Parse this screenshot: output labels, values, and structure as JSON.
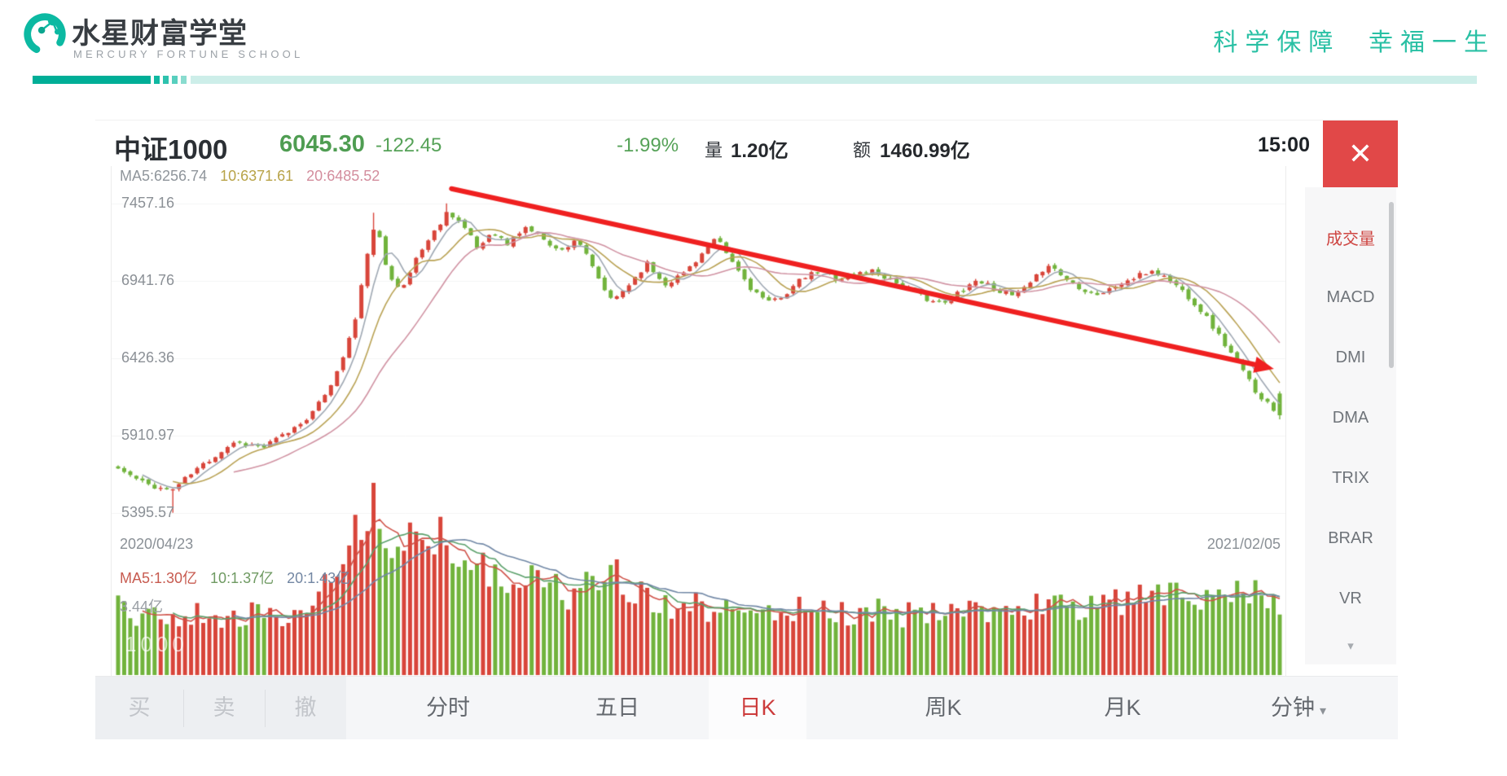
{
  "brand": {
    "logo_title": "水星财富学堂",
    "logo_subtitle": "MERCURY FORTUNE SCHOOL",
    "slogan": "科学保障  幸福一生",
    "colors": {
      "teal": "#0cb9a2",
      "bar_dark": "#00ae97",
      "bar_light": "#cdeee9",
      "bar_segments": [
        "#0fb8a1",
        "#2ec2ae",
        "#58cfbe",
        "#8adccf"
      ]
    }
  },
  "quote_header": {
    "name": "中证1000",
    "price": "6045.30",
    "change": "-122.45",
    "change_pct": "-1.99%",
    "volume_label": "量",
    "volume": "1.20亿",
    "turnover_label": "额",
    "turnover": "1460.99亿",
    "time": "15:00",
    "close_icon": "✕"
  },
  "price_pane": {
    "ma_labels": [
      {
        "text": "MA5:6256.74",
        "color": "#8f959b"
      },
      {
        "text": "10:6371.61",
        "color": "#b8a348"
      },
      {
        "text": "20:6485.52",
        "color": "#d38d9d"
      }
    ],
    "y_axis": [
      "7457.16",
      "6941.76",
      "6426.36",
      "5910.97",
      "5395.57"
    ],
    "date_start": "2020/04/23",
    "date_end": "2021/02/05"
  },
  "volume_pane": {
    "ma_labels": [
      {
        "text": "MA5:1.30亿",
        "color": "#c75b50"
      },
      {
        "text": "10:1.37亿",
        "color": "#6f9a62"
      },
      {
        "text": "20:1.43亿",
        "color": "#7387a3"
      }
    ],
    "max_label": "3.44亿",
    "watermark": "1000"
  },
  "sidebar": {
    "items": [
      {
        "label": "成交量",
        "key": "volume",
        "active": true
      },
      {
        "label": "MACD",
        "key": "macd",
        "active": false
      },
      {
        "label": "DMI",
        "key": "dmi",
        "active": false
      },
      {
        "label": "DMA",
        "key": "dma",
        "active": false
      },
      {
        "label": "TRIX",
        "key": "trix",
        "active": false
      },
      {
        "label": "BRAR",
        "key": "brar",
        "active": false
      },
      {
        "label": "VR",
        "key": "vr",
        "active": false
      }
    ],
    "more_icon": "▾"
  },
  "tabbar": {
    "tabs": [
      {
        "label": "买",
        "key": "buy",
        "muted": true
      },
      {
        "label": "卖",
        "key": "sell",
        "muted": true
      },
      {
        "label": "撤",
        "key": "cancel",
        "muted": true
      },
      {
        "label": "分时",
        "key": "intraday"
      },
      {
        "label": "五日",
        "key": "five-day"
      },
      {
        "label": "日K",
        "key": "daily-k",
        "active": true
      },
      {
        "label": "周K",
        "key": "weekly-k"
      },
      {
        "label": "月K",
        "key": "monthly-k"
      },
      {
        "label": "分钟",
        "key": "minute",
        "dropdown": true
      }
    ],
    "dropdown_icon": "▾"
  },
  "chart_data": {
    "type": "candlestick",
    "title": "中证1000 日K",
    "x_range": [
      "2020/04/23",
      "2021/02/05"
    ],
    "y_ticks_price": [
      5395.57,
      5910.97,
      6426.36,
      6941.76,
      7457.16
    ],
    "price_plot_range": [
      5280,
      7570
    ],
    "volume_axis_max_yi": 3.44,
    "last_quote": {
      "close": 6045.3,
      "change": -122.45,
      "change_pct": -1.99,
      "volume_yi": 1.2,
      "turnover_yi": 1460.99,
      "time": "15:00"
    },
    "ma_price_current": {
      "ma5": 6256.74,
      "ma10": 6371.61,
      "ma20": 6485.52
    },
    "ma_volume_current_yi": {
      "ma5": 1.3,
      "ma10": 1.37,
      "ma20": 1.43
    },
    "num_candles": 192,
    "close_anchors": [
      [
        0.0,
        5690
      ],
      [
        0.02,
        5600
      ],
      [
        0.045,
        5540
      ],
      [
        0.07,
        5700
      ],
      [
        0.1,
        5870
      ],
      [
        0.125,
        5830
      ],
      [
        0.15,
        5950
      ],
      [
        0.17,
        6080
      ],
      [
        0.19,
        6350
      ],
      [
        0.205,
        6700
      ],
      [
        0.215,
        7150
      ],
      [
        0.222,
        7320
      ],
      [
        0.232,
        7000
      ],
      [
        0.245,
        6880
      ],
      [
        0.258,
        7120
      ],
      [
        0.27,
        7240
      ],
      [
        0.284,
        7410
      ],
      [
        0.295,
        7330
      ],
      [
        0.31,
        7150
      ],
      [
        0.322,
        7280
      ],
      [
        0.335,
        7180
      ],
      [
        0.35,
        7300
      ],
      [
        0.365,
        7240
      ],
      [
        0.38,
        7130
      ],
      [
        0.395,
        7230
      ],
      [
        0.41,
        7000
      ],
      [
        0.425,
        6800
      ],
      [
        0.44,
        6920
      ],
      [
        0.455,
        7060
      ],
      [
        0.47,
        6920
      ],
      [
        0.485,
        6980
      ],
      [
        0.5,
        7100
      ],
      [
        0.515,
        7220
      ],
      [
        0.53,
        7050
      ],
      [
        0.545,
        6890
      ],
      [
        0.56,
        6790
      ],
      [
        0.575,
        6860
      ],
      [
        0.59,
        6960
      ],
      [
        0.605,
        7010
      ],
      [
        0.62,
        6950
      ],
      [
        0.635,
        6990
      ],
      [
        0.65,
        7010
      ],
      [
        0.665,
        6950
      ],
      [
        0.68,
        6890
      ],
      [
        0.695,
        6830
      ],
      [
        0.71,
        6780
      ],
      [
        0.725,
        6880
      ],
      [
        0.74,
        6950
      ],
      [
        0.755,
        6890
      ],
      [
        0.77,
        6840
      ],
      [
        0.785,
        6910
      ],
      [
        0.8,
        7060
      ],
      [
        0.815,
        6960
      ],
      [
        0.83,
        6890
      ],
      [
        0.845,
        6850
      ],
      [
        0.86,
        6910
      ],
      [
        0.875,
        6960
      ],
      [
        0.89,
        7010
      ],
      [
        0.905,
        6950
      ],
      [
        0.92,
        6850
      ],
      [
        0.935,
        6720
      ],
      [
        0.95,
        6550
      ],
      [
        0.965,
        6380
      ],
      [
        0.98,
        6200
      ],
      [
        1.0,
        6045.3
      ]
    ],
    "volume_anchors_yi": [
      [
        0.0,
        1.35
      ],
      [
        0.03,
        1.15
      ],
      [
        0.06,
        1.2
      ],
      [
        0.09,
        1.1
      ],
      [
        0.12,
        1.25
      ],
      [
        0.15,
        1.15
      ],
      [
        0.17,
        1.45
      ],
      [
        0.19,
        2.1
      ],
      [
        0.2,
        2.8
      ],
      [
        0.21,
        3.3
      ],
      [
        0.22,
        3.44
      ],
      [
        0.232,
        3.1
      ],
      [
        0.245,
        2.55
      ],
      [
        0.26,
        2.7
      ],
      [
        0.275,
        2.9
      ],
      [
        0.29,
        2.6
      ],
      [
        0.305,
        2.3
      ],
      [
        0.32,
        2.1
      ],
      [
        0.34,
        1.95
      ],
      [
        0.36,
        1.8
      ],
      [
        0.385,
        1.6
      ],
      [
        0.41,
        1.75
      ],
      [
        0.425,
        2.0
      ],
      [
        0.44,
        1.7
      ],
      [
        0.46,
        1.5
      ],
      [
        0.48,
        1.4
      ],
      [
        0.5,
        1.35
      ],
      [
        0.53,
        1.3
      ],
      [
        0.56,
        1.25
      ],
      [
        0.59,
        1.3
      ],
      [
        0.62,
        1.2
      ],
      [
        0.65,
        1.25
      ],
      [
        0.68,
        1.2
      ],
      [
        0.71,
        1.3
      ],
      [
        0.74,
        1.25
      ],
      [
        0.77,
        1.3
      ],
      [
        0.8,
        1.4
      ],
      [
        0.83,
        1.35
      ],
      [
        0.86,
        1.4
      ],
      [
        0.89,
        1.55
      ],
      [
        0.92,
        1.6
      ],
      [
        0.95,
        1.55
      ],
      [
        0.975,
        1.7
      ],
      [
        1.0,
        1.2
      ]
    ],
    "trendline": {
      "x1_frac": 0.287,
      "y1_price": 7555,
      "x2_frac": 0.995,
      "y2_price": 6355,
      "color": "#ef2020"
    },
    "colors": {
      "up": "#d8453a",
      "down": "#71b33c",
      "ma5": "#9fa8b3",
      "ma10": "#b9a254",
      "ma20": "#d092a2",
      "vma5": "#cf5148",
      "vma10": "#5ba06b",
      "vma20": "#7188a6"
    }
  }
}
